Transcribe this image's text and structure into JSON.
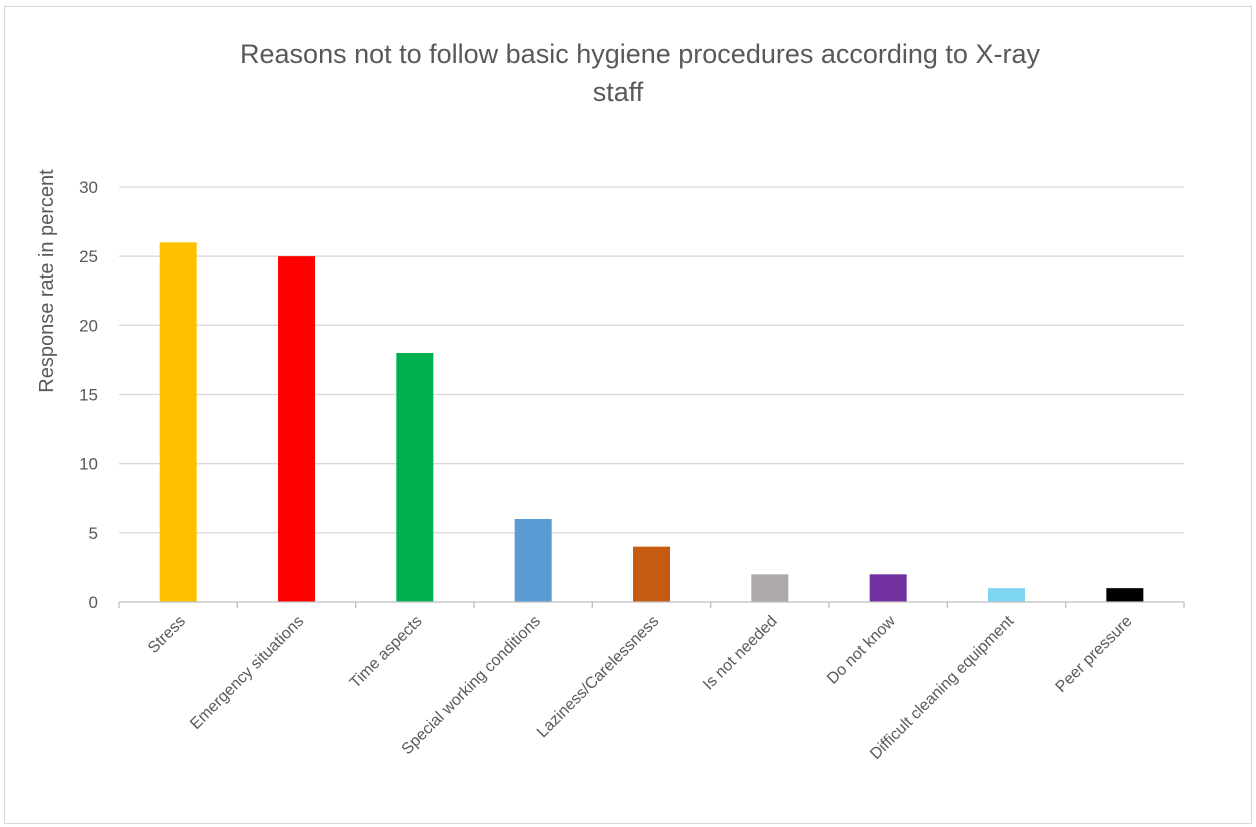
{
  "chart_data": {
    "type": "bar",
    "title": "Reasons not to follow basic hygiene procedures according to X-ray staff",
    "xlabel": "",
    "ylabel": "Response rate in percent",
    "ylim": [
      0,
      30
    ],
    "yticks": [
      0,
      5,
      10,
      15,
      20,
      25,
      30
    ],
    "grid": true,
    "legend": "none",
    "categories": [
      "Stress",
      "Emergency situations",
      "Time aspects",
      "Special working conditions",
      "Laziness/Carelessness",
      "Is not needed",
      "Do not know",
      "Difficult cleaning equipment",
      "Peer pressure"
    ],
    "values": [
      26,
      25,
      18,
      6,
      4,
      2,
      2,
      1,
      1
    ],
    "colors": [
      "#FFC000",
      "#FF0000",
      "#00B050",
      "#5B9BD5",
      "#C55A11",
      "#AEAAAA",
      "#7030A0",
      "#7DD6F0",
      "#000000"
    ]
  }
}
